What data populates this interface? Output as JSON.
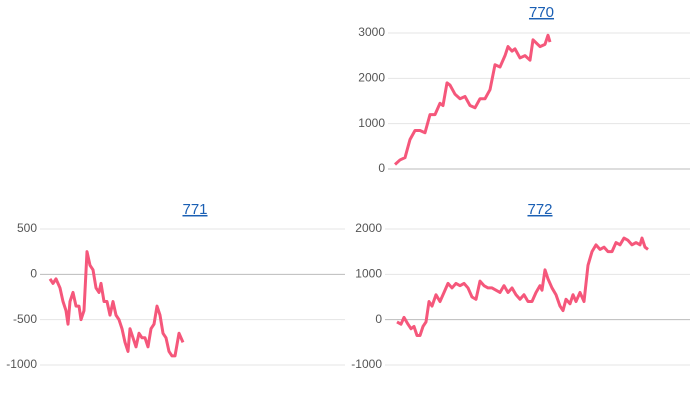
{
  "chart_data": [
    {
      "type": "line",
      "title": "770",
      "color": "#f5577b",
      "grid": true,
      "xlim": [
        0,
        297
      ],
      "ylim": [
        0,
        3000
      ],
      "yticks": [
        0,
        1000,
        2000,
        3000
      ],
      "x": [
        2,
        7,
        12,
        17,
        22,
        27,
        32,
        37,
        42,
        47,
        50,
        54,
        57,
        62,
        67,
        72,
        77,
        82,
        87,
        92,
        97,
        102,
        107,
        112,
        115,
        119,
        122,
        127,
        132,
        137,
        140,
        147,
        152,
        155,
        157
      ],
      "values": [
        100,
        200,
        250,
        650,
        850,
        850,
        800,
        1200,
        1200,
        1450,
        1400,
        1900,
        1850,
        1650,
        1550,
        1600,
        1400,
        1350,
        1550,
        1550,
        1750,
        2300,
        2250,
        2500,
        2700,
        2600,
        2650,
        2450,
        2500,
        2400,
        2850,
        2700,
        2750,
        2950,
        2800
      ]
    },
    {
      "type": "line",
      "title": "771",
      "color": "#f5577b",
      "grid": true,
      "xlim": [
        0,
        300
      ],
      "ylim": [
        -1000,
        500
      ],
      "yticks": [
        -1000,
        -500,
        0,
        500
      ],
      "x": [
        5,
        8,
        11,
        15,
        18,
        21,
        23,
        25,
        28,
        31,
        34,
        36,
        39,
        42,
        45,
        48,
        51,
        54,
        56,
        59,
        62,
        65,
        68,
        71,
        74,
        77,
        80,
        83,
        85,
        88,
        91,
        94,
        97,
        100,
        103,
        106,
        109,
        112,
        115,
        118,
        121,
        124,
        127,
        130,
        134,
        138
      ],
      "values": [
        -50,
        -100,
        -50,
        -150,
        -300,
        -400,
        -550,
        -300,
        -200,
        -350,
        -350,
        -500,
        -400,
        250,
        100,
        50,
        -150,
        -200,
        -100,
        -300,
        -300,
        -450,
        -300,
        -450,
        -500,
        -600,
        -750,
        -850,
        -600,
        -700,
        -800,
        -650,
        -700,
        -700,
        -800,
        -600,
        -550,
        -350,
        -450,
        -650,
        -700,
        -850,
        -900,
        -900,
        -650,
        -750
      ]
    },
    {
      "type": "line",
      "title": "772",
      "color": "#f5577b",
      "grid": true,
      "xlim": [
        0,
        300
      ],
      "ylim": [
        -1000,
        2000
      ],
      "yticks": [
        -1000,
        0,
        1000,
        2000
      ],
      "x": [
        7,
        11,
        14,
        18,
        21,
        24,
        27,
        30,
        33,
        36,
        39,
        42,
        46,
        50,
        54,
        58,
        62,
        66,
        70,
        74,
        78,
        82,
        86,
        90,
        94,
        98,
        102,
        106,
        110,
        114,
        118,
        122,
        126,
        130,
        134,
        138,
        142,
        146,
        150,
        152,
        155,
        158,
        162,
        166,
        170,
        173,
        176,
        180,
        183,
        186,
        190,
        194,
        198,
        202,
        206,
        210,
        214,
        218,
        222,
        226,
        230,
        234,
        238,
        242,
        246,
        250,
        252,
        255,
        258
      ],
      "values": [
        -50,
        -100,
        50,
        -100,
        -200,
        -150,
        -350,
        -350,
        -150,
        -50,
        400,
        300,
        550,
        400,
        600,
        800,
        700,
        800,
        750,
        800,
        700,
        500,
        450,
        850,
        750,
        700,
        700,
        650,
        600,
        750,
        600,
        700,
        550,
        450,
        550,
        400,
        400,
        600,
        750,
        650,
        1100,
        900,
        700,
        550,
        300,
        200,
        450,
        350,
        550,
        400,
        600,
        400,
        1200,
        1500,
        1650,
        1550,
        1600,
        1500,
        1500,
        1700,
        1650,
        1800,
        1750,
        1650,
        1700,
        1650,
        1800,
        1600,
        1550
      ]
    }
  ]
}
